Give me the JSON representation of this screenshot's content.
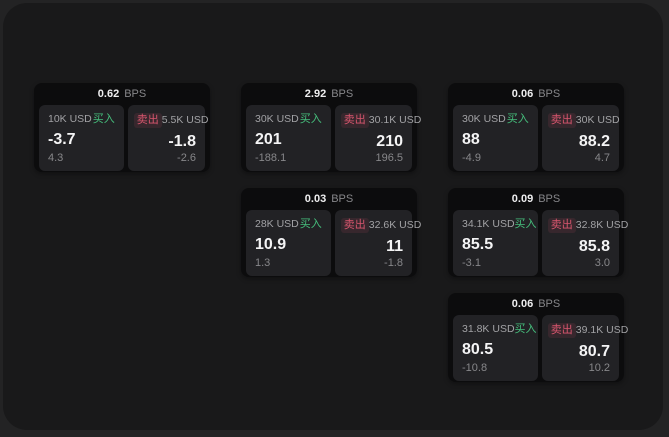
{
  "labels": {
    "buy": "买入",
    "sell": "卖出",
    "bps_unit": "BPS"
  },
  "colors": {
    "buy_green": "#46c07d",
    "sell_red": "#d9566e",
    "value_white": "#f4f4f5",
    "muted_gray": "#87878a",
    "card_bg": "#0c0c0d",
    "panel_bg": "#222225",
    "window_bg": "#19191a"
  },
  "cards": [
    {
      "bps": "0.62",
      "col": 1,
      "row": 1,
      "buy": {
        "amount": "10K USD",
        "value": "-3.7",
        "sub": "4.3"
      },
      "sell": {
        "amount": "5.5K USD",
        "value": "-1.8",
        "sub": "-2.6"
      }
    },
    {
      "bps": "2.92",
      "col": 2,
      "row": 1,
      "buy": {
        "amount": "30K USD",
        "value": "201",
        "sub": "-188.1"
      },
      "sell": {
        "amount": "30.1K USD",
        "value": "210",
        "sub": "196.5"
      }
    },
    {
      "bps": "0.06",
      "col": 3,
      "row": 1,
      "buy": {
        "amount": "30K USD",
        "value": "88",
        "sub": "-4.9"
      },
      "sell": {
        "amount": "30K USD",
        "value": "88.2",
        "sub": "4.7"
      }
    },
    {
      "bps": "0.03",
      "col": 2,
      "row": 2,
      "buy": {
        "amount": "28K USD",
        "value": "10.9",
        "sub": "1.3"
      },
      "sell": {
        "amount": "32.6K USD",
        "value": "11",
        "sub": "-1.8"
      }
    },
    {
      "bps": "0.09",
      "col": 3,
      "row": 2,
      "buy": {
        "amount": "34.1K USD",
        "value": "85.5",
        "sub": "-3.1"
      },
      "sell": {
        "amount": "32.8K USD",
        "value": "85.8",
        "sub": "3.0"
      }
    },
    {
      "bps": "0.06",
      "col": 3,
      "row": 3,
      "buy": {
        "amount": "31.8K USD",
        "value": "80.5",
        "sub": "-10.8"
      },
      "sell": {
        "amount": "39.1K USD",
        "value": "80.7",
        "sub": "10.2"
      }
    }
  ]
}
